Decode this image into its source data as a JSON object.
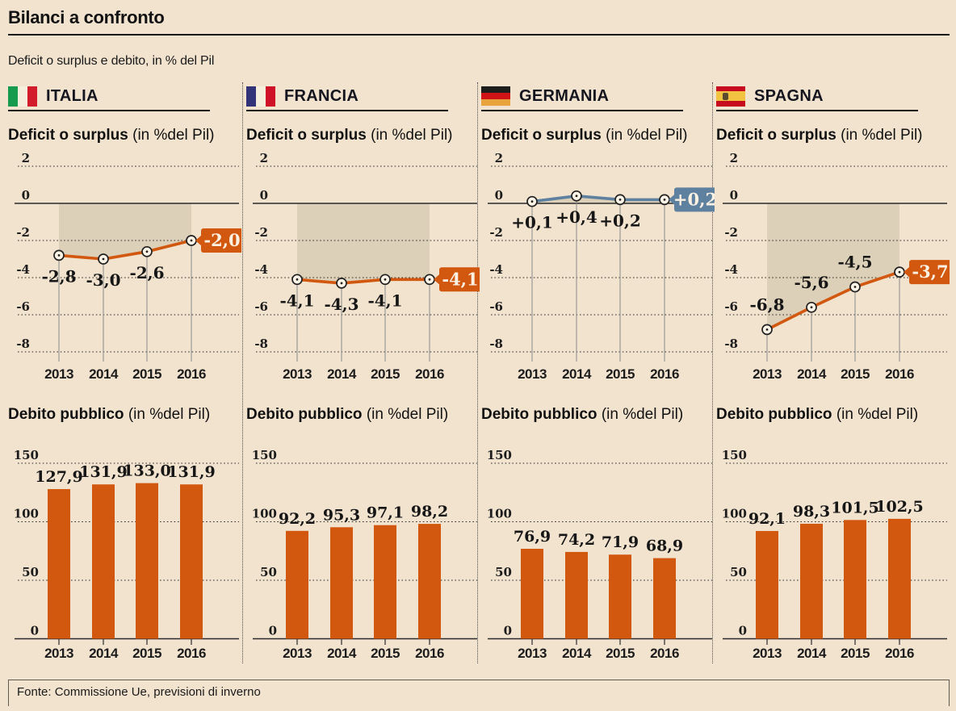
{
  "page": {
    "title": "Bilanci a confronto",
    "subtitle": "Deficit o surplus e debito, in % del Pil",
    "source": "Fonte: Commissione Ue, previsioni di inverno",
    "background": "#f2e3cf"
  },
  "sections": {
    "deficit_bold": "Deficit o surplus",
    "deficit_note": " (in %del Pil)",
    "debt_bold": "Debito pubblico",
    "debt_note": " (in %del Pil)"
  },
  "years": [
    "2013",
    "2014",
    "2015",
    "2016"
  ],
  "colors": {
    "background": "#f2e3cf",
    "area_shade": "#ddd0b8",
    "orange": "#d2570f",
    "blue": "#5e81a0",
    "grid": "#2b2b2b",
    "hairline": "#8b8b8b",
    "marker_fill": "#fcf4e6",
    "marker_ring": "#222222",
    "box_text": "#fbf1e2"
  },
  "countries": [
    {
      "name": "ITALIA",
      "flag": {
        "orientation": "vertical",
        "stripes": [
          "#169b4e",
          "#f6eedd",
          "#d21b2b"
        ],
        "weights": [
          1,
          1,
          1
        ]
      }
    },
    {
      "name": "FRANCIA",
      "flag": {
        "orientation": "vertical",
        "stripes": [
          "#33337a",
          "#f6eedd",
          "#cf1127"
        ],
        "weights": [
          1,
          1,
          1
        ]
      }
    },
    {
      "name": "GERMANIA",
      "flag": {
        "orientation": "horizontal",
        "stripes": [
          "#1d1d1b",
          "#d01317",
          "#e8a33d"
        ],
        "weights": [
          1,
          1,
          1
        ]
      }
    },
    {
      "name": "SPAGNA",
      "flag": {
        "orientation": "horizontal",
        "stripes": [
          "#c60b1e",
          "#f1c340",
          "#c60b1e"
        ],
        "weights": [
          1,
          2,
          1
        ],
        "emblem": "#5c4b2f"
      }
    }
  ],
  "chart_data": [
    {
      "id": "italia-deficit",
      "type": "line",
      "country": "ITALIA",
      "title": "Deficit o surplus (in %del Pil)",
      "x": [
        "2013",
        "2014",
        "2015",
        "2016"
      ],
      "values": [
        -2.8,
        -3.0,
        -2.6,
        -2.0
      ],
      "point_labels": [
        "-2,8",
        "-3,0",
        "-2,6"
      ],
      "end_label": "-2,0",
      "label_side": "below",
      "line_color": "#d2570f",
      "box_color": "#d2570f",
      "yticks": [
        2,
        0,
        -2,
        -4,
        -6,
        -8
      ],
      "ylim": [
        -9,
        3
      ],
      "grid": "dotted",
      "area_fill": true
    },
    {
      "id": "italia-debito",
      "type": "bar",
      "country": "ITALIA",
      "title": "Debito pubblico (in %del Pil)",
      "x": [
        "2013",
        "2014",
        "2015",
        "2016"
      ],
      "values": [
        127.9,
        131.9,
        133.0,
        131.9
      ],
      "bar_labels": [
        "127,9",
        "131,9",
        "133,0",
        "131,9"
      ],
      "bar_color": "#d2570f",
      "yticks": [
        150,
        100,
        50,
        0
      ],
      "ylim": [
        0,
        165
      ],
      "grid": "dotted"
    },
    {
      "id": "francia-deficit",
      "type": "line",
      "country": "FRANCIA",
      "title": "Deficit o surplus (in %del Pil)",
      "x": [
        "2013",
        "2014",
        "2015",
        "2016"
      ],
      "values": [
        -4.1,
        -4.3,
        -4.1,
        -4.1
      ],
      "point_labels": [
        "-4,1",
        "-4,3",
        "-4,1"
      ],
      "end_label": "-4,1",
      "label_side": "below",
      "line_color": "#d2570f",
      "box_color": "#d2570f",
      "yticks": [
        2,
        0,
        -2,
        -4,
        -6,
        -8
      ],
      "ylim": [
        -9,
        3
      ],
      "grid": "dotted",
      "area_fill": true
    },
    {
      "id": "francia-debito",
      "type": "bar",
      "country": "FRANCIA",
      "title": "Debito pubblico (in %del Pil)",
      "x": [
        "2013",
        "2014",
        "2015",
        "2016"
      ],
      "values": [
        92.2,
        95.3,
        97.1,
        98.2
      ],
      "bar_labels": [
        "92,2",
        "95,3",
        "97,1",
        "98,2"
      ],
      "bar_color": "#d2570f",
      "yticks": [
        150,
        100,
        50,
        0
      ],
      "ylim": [
        0,
        165
      ],
      "grid": "dotted"
    },
    {
      "id": "germania-deficit",
      "type": "line",
      "country": "GERMANIA",
      "title": "Deficit o surplus (in %del Pil)",
      "x": [
        "2013",
        "2014",
        "2015",
        "2016"
      ],
      "values": [
        0.1,
        0.4,
        0.2,
        0.2
      ],
      "point_labels": [
        "+0,1",
        "+0,4",
        "+0,2"
      ],
      "end_label": "+0,2",
      "label_side": "below",
      "line_color": "#5e81a0",
      "box_color": "#5e81a0",
      "yticks": [
        2,
        0,
        -2,
        -4,
        -6,
        -8
      ],
      "ylim": [
        -9,
        3
      ],
      "grid": "dotted",
      "area_fill": true
    },
    {
      "id": "germania-debito",
      "type": "bar",
      "country": "GERMANIA",
      "title": "Debito pubblico (in %del Pil)",
      "x": [
        "2013",
        "2014",
        "2015",
        "2016"
      ],
      "values": [
        76.9,
        74.2,
        71.9,
        68.9
      ],
      "bar_labels": [
        "76,9",
        "74,2",
        "71,9",
        "68,9"
      ],
      "bar_color": "#d2570f",
      "yticks": [
        150,
        100,
        50,
        0
      ],
      "ylim": [
        0,
        165
      ],
      "grid": "dotted"
    },
    {
      "id": "spagna-deficit",
      "type": "line",
      "country": "SPAGNA",
      "title": "Deficit o surplus (in %del Pil)",
      "x": [
        "2013",
        "2014",
        "2015",
        "2016"
      ],
      "values": [
        -6.8,
        -5.6,
        -4.5,
        -3.7
      ],
      "point_labels": [
        "-6,8",
        "-5,6",
        "-4,5"
      ],
      "end_label": "-3,7",
      "label_side": "above",
      "line_color": "#d2570f",
      "box_color": "#d2570f",
      "yticks": [
        2,
        0,
        -2,
        -4,
        -6,
        -8
      ],
      "ylim": [
        -9,
        3
      ],
      "grid": "dotted",
      "area_fill": true
    },
    {
      "id": "spagna-debito",
      "type": "bar",
      "country": "SPAGNA",
      "title": "Debito pubblico (in %del Pil)",
      "x": [
        "2013",
        "2014",
        "2015",
        "2016"
      ],
      "values": [
        92.1,
        98.3,
        101.5,
        102.5
      ],
      "bar_labels": [
        "92,1",
        "98,3",
        "101,5",
        "102,5"
      ],
      "bar_color": "#d2570f",
      "yticks": [
        150,
        100,
        50,
        0
      ],
      "ylim": [
        0,
        165
      ],
      "grid": "dotted"
    }
  ]
}
